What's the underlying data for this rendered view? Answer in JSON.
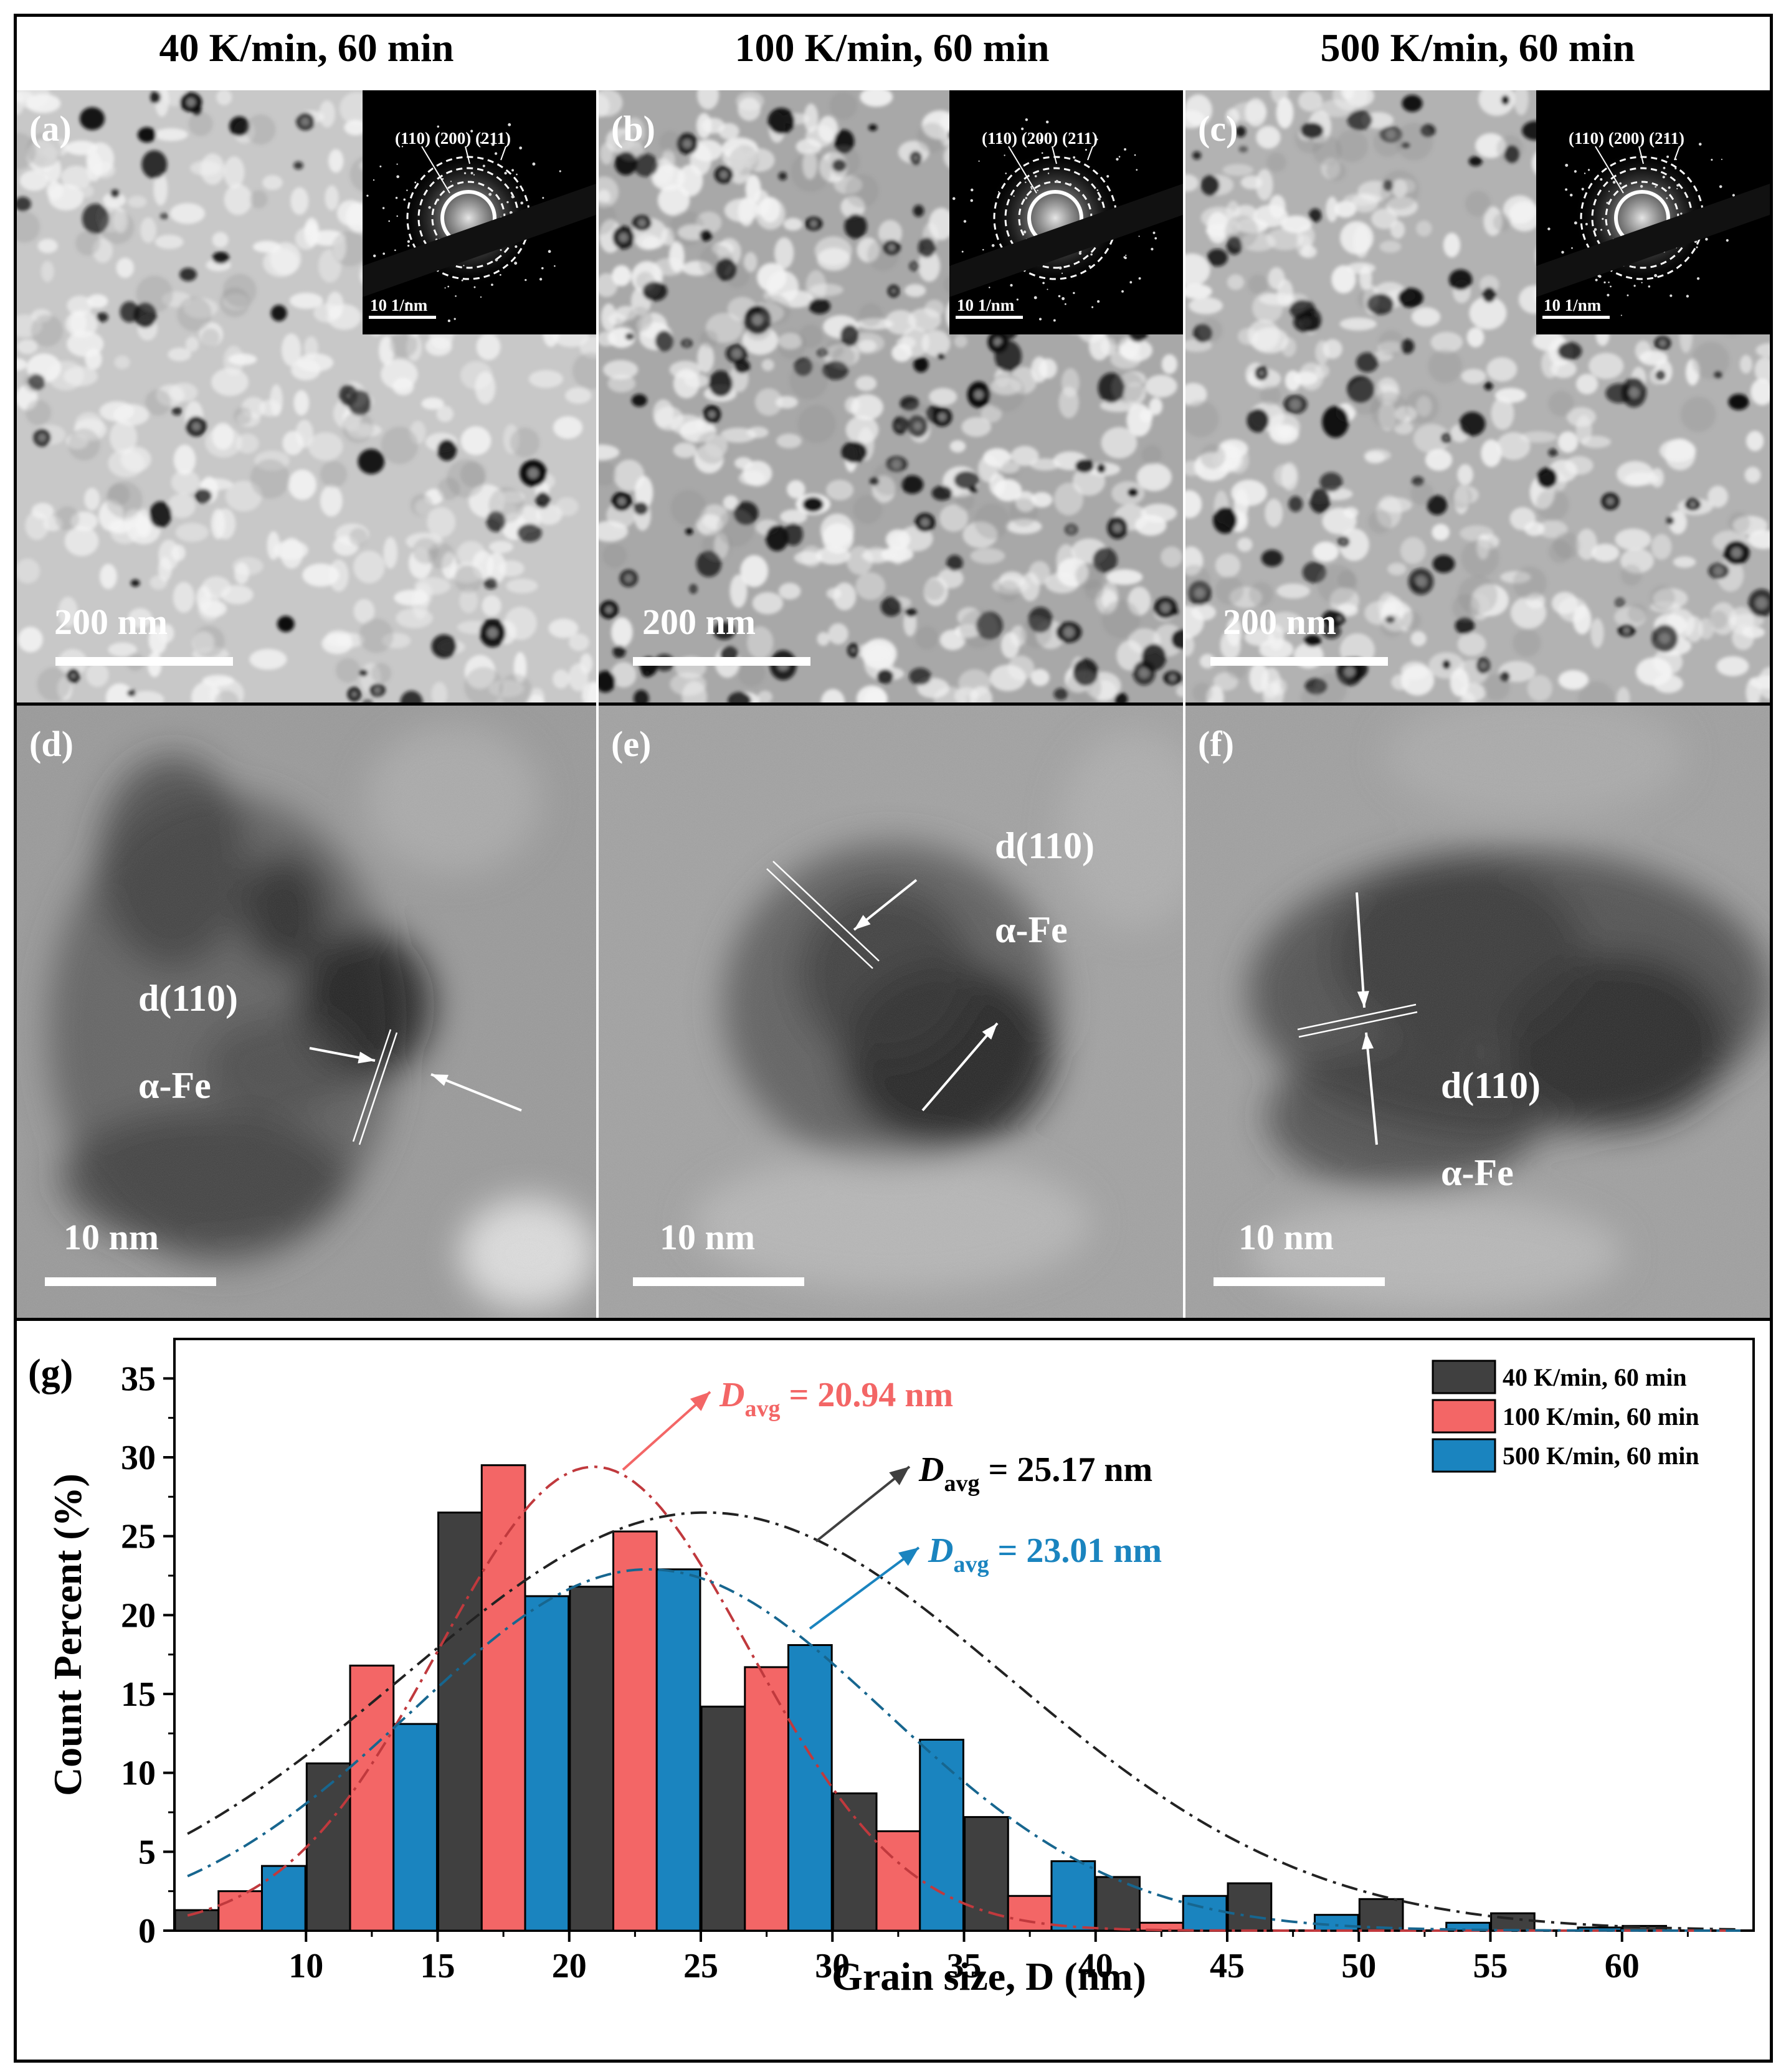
{
  "titles": [
    "40 K/min, 60 min",
    "100 K/min, 60 min",
    "500 K/min, 60 min"
  ],
  "panels_top": [
    {
      "label": "(a)",
      "scale": "200 nm",
      "saed": {
        "rings": [
          "(110)",
          "(200)",
          "(211)"
        ],
        "scale": "10 1/nm"
      }
    },
    {
      "label": "(b)",
      "scale": "200 nm",
      "saed": {
        "rings": [
          "(110)",
          "(200)",
          "(211)"
        ],
        "scale": "10 1/nm"
      }
    },
    {
      "label": "(c)",
      "scale": "200 nm",
      "saed": {
        "rings": [
          "(110)",
          "(200)",
          "(211)"
        ],
        "scale": "10 1/nm"
      }
    }
  ],
  "panels_mid": [
    {
      "label": "(d)",
      "scale": "10 nm",
      "plane": "d(110)",
      "phase": "α-Fe"
    },
    {
      "label": "(e)",
      "scale": "10 nm",
      "plane": "d(110)",
      "phase": "α-Fe"
    },
    {
      "label": "(f)",
      "scale": "10 nm",
      "plane": "d(110)",
      "phase": "α-Fe"
    }
  ],
  "chart_label": "(g)",
  "chart_data": {
    "type": "bar",
    "xlabel": "Grain size, D (nm)",
    "ylabel": "Count Percent (%)",
    "xlim": [
      5,
      65
    ],
    "ylim": [
      0,
      37.5
    ],
    "xticks": [
      10,
      15,
      20,
      25,
      30,
      35,
      40,
      45,
      50,
      55,
      60
    ],
    "yticks": [
      0,
      5,
      10,
      15,
      20,
      25,
      30,
      35
    ],
    "legend_position": "top-right",
    "series": [
      {
        "name": "40 K/min, 60 min",
        "color": "#404040",
        "x": [
          7.5,
          12.5,
          17.5,
          22.5,
          27.5,
          32.5,
          37.5,
          42.5,
          47.5,
          52.5,
          57.5,
          62.5
        ],
        "values": [
          1.3,
          10.6,
          26.5,
          21.8,
          14.2,
          8.7,
          7.2,
          3.4,
          3.0,
          2.0,
          1.1,
          0.3
        ]
      },
      {
        "name": "100 K/min, 60 min",
        "color": "#f36666",
        "x": [
          7.5,
          12.5,
          17.5,
          22.5,
          27.5,
          32.5,
          37.5,
          42.5
        ],
        "values": [
          2.5,
          16.8,
          29.5,
          25.3,
          16.7,
          6.3,
          2.2,
          0.5
        ]
      },
      {
        "name": "500 K/min, 60 min",
        "color": "#1a84bf",
        "x": [
          7.5,
          12.5,
          17.5,
          22.5,
          27.5,
          32.5,
          37.5,
          42.5,
          47.5,
          52.5,
          57.5
        ],
        "values": [
          4.1,
          13.1,
          21.2,
          22.9,
          18.1,
          12.1,
          4.4,
          2.2,
          1.0,
          0.5,
          0.2
        ]
      }
    ],
    "fits": [
      {
        "series": "40 K/min, 60 min",
        "mean": 25.17,
        "peak": 26.5,
        "sigma": 11.5,
        "color": "#222222"
      },
      {
        "series": "100 K/min, 60 min",
        "mean": 20.94,
        "peak": 29.4,
        "sigma": 5.9,
        "color": "#c0393d"
      },
      {
        "series": "500 K/min, 60 min",
        "mean": 23.01,
        "peak": 22.9,
        "sigma": 9.0,
        "color": "#17668f"
      }
    ],
    "annotations": [
      {
        "prefix": "D",
        "sub": "avg",
        "text": " = 20.94 nm",
        "color": "#f36666"
      },
      {
        "prefix": "D",
        "sub": "avg",
        "text": " = 25.17 nm",
        "color": "#000000"
      },
      {
        "prefix": "D",
        "sub": "avg",
        "text": " = 23.01 nm",
        "color": "#1a84bf"
      }
    ]
  }
}
